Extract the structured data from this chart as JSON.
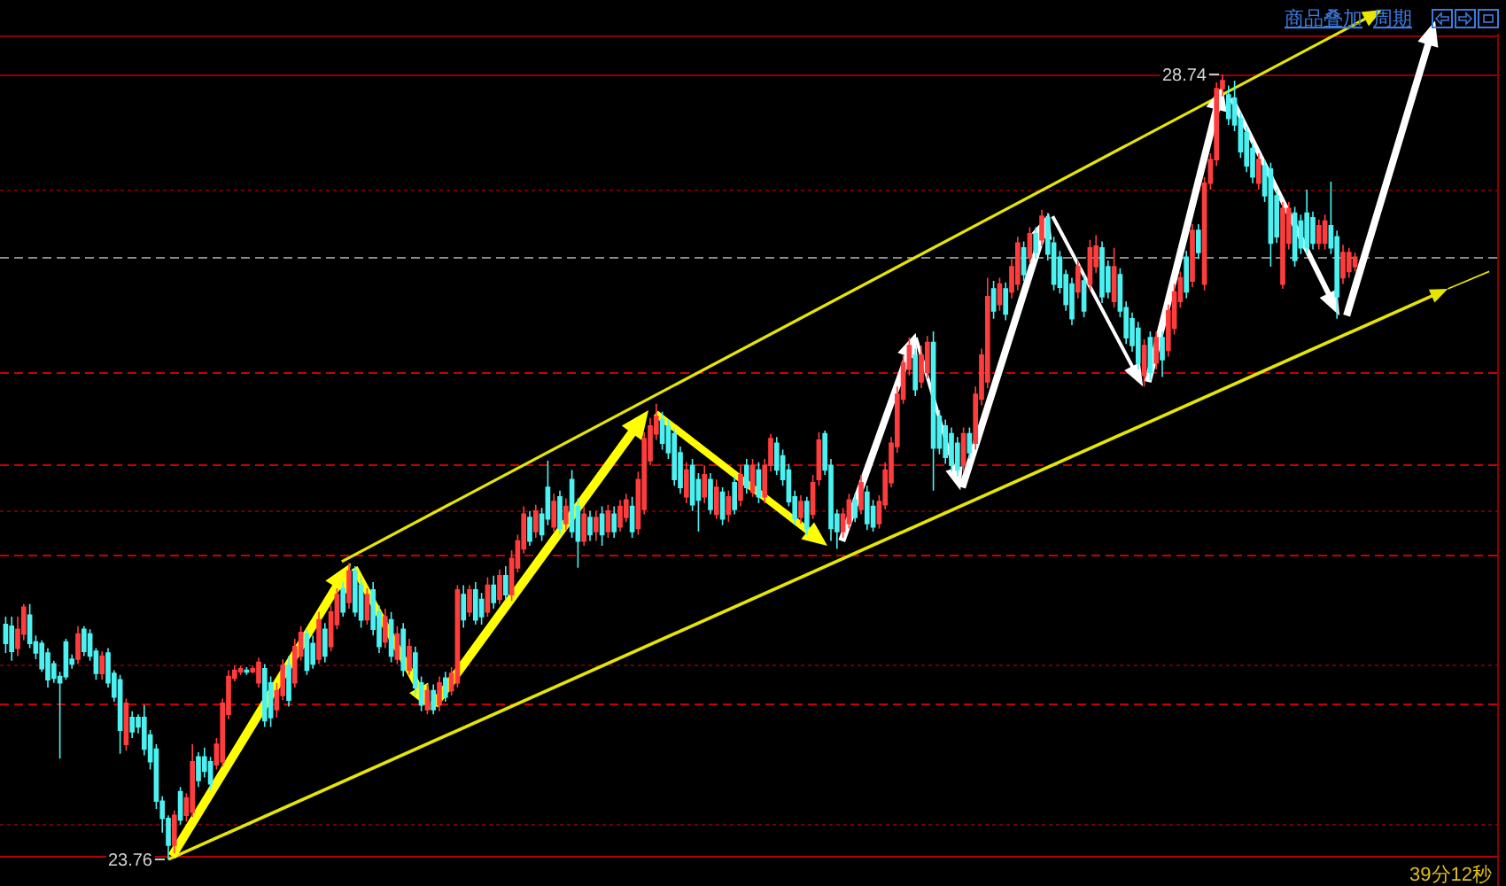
{
  "chart_data": {
    "type": "candlestick",
    "categories": [
      null,
      null,
      null,
      null,
      null,
      null,
      null,
      null,
      null,
      null,
      null,
      null,
      null,
      null,
      null,
      null,
      null,
      null,
      null,
      null,
      null,
      null,
      null,
      null,
      null,
      null,
      null,
      null,
      null,
      null,
      null,
      null,
      null,
      null,
      null,
      null,
      null,
      null,
      null,
      null,
      null,
      null,
      null,
      null,
      null,
      null,
      null,
      null,
      null,
      null,
      null,
      null,
      null,
      null,
      null,
      null,
      null,
      null,
      null,
      null,
      null,
      null,
      null,
      null,
      null,
      null,
      null,
      null,
      null,
      null,
      null,
      null,
      null,
      null,
      null,
      null,
      null,
      null,
      null,
      null,
      null,
      null,
      null,
      null,
      null,
      null,
      null,
      null,
      null,
      null,
      null,
      null,
      null,
      null,
      null,
      null,
      null,
      null,
      null,
      null,
      null,
      null,
      null,
      null,
      null,
      null,
      null,
      null,
      null,
      null,
      null,
      null,
      null,
      null,
      null,
      null,
      null,
      null,
      null,
      null,
      null,
      null,
      null,
      null,
      null,
      null,
      null,
      null,
      null,
      null,
      null,
      null,
      null,
      null,
      null,
      null,
      null,
      null,
      null,
      null,
      null,
      null,
      null,
      null,
      null,
      null,
      null,
      null,
      null,
      null,
      null,
      null,
      null,
      null,
      null,
      null,
      null,
      null,
      null,
      null,
      null,
      null,
      null,
      null,
      null,
      null,
      null,
      null,
      null,
      null,
      null,
      null,
      null,
      null,
      null,
      null,
      null,
      null,
      null,
      null,
      null,
      null,
      null,
      null,
      null,
      null,
      null,
      null,
      null,
      null,
      null,
      null,
      null,
      null,
      null,
      null,
      null,
      null,
      null,
      null,
      null,
      null,
      null,
      null,
      null,
      null,
      null,
      null,
      null,
      null,
      null,
      null,
      null,
      null,
      null,
      null,
      null,
      null,
      null,
      null,
      null,
      null,
      null,
      null,
      null
    ],
    "ohlc": [
      [
        25.25,
        25.3,
        25.07,
        25.13
      ],
      [
        25.24,
        25.3,
        25.02,
        25.08
      ],
      [
        25.1,
        25.3,
        25.05,
        25.22
      ],
      [
        25.19,
        25.38,
        25.15,
        25.36
      ],
      [
        25.31,
        25.38,
        25.1,
        25.13
      ],
      [
        25.14,
        25.18,
        25.03,
        25.07
      ],
      [
        25.13,
        25.15,
        24.95,
        24.97
      ],
      [
        25.07,
        25.1,
        24.85,
        24.9
      ],
      [
        25.0,
        25.02,
        24.88,
        24.91
      ],
      [
        24.92,
        24.95,
        24.4,
        24.88
      ],
      [
        25.14,
        25.16,
        24.9,
        24.92
      ],
      [
        25.03,
        25.06,
        24.97,
        25.0
      ],
      [
        25.03,
        25.24,
        25.0,
        25.19
      ],
      [
        25.22,
        25.24,
        25.05,
        25.08
      ],
      [
        25.19,
        25.22,
        25.02,
        25.05
      ],
      [
        25.08,
        25.1,
        24.9,
        24.94
      ],
      [
        24.94,
        25.08,
        24.9,
        25.05
      ],
      [
        25.07,
        25.1,
        24.85,
        24.88
      ],
      [
        24.94,
        24.96,
        24.76,
        24.79
      ],
      [
        24.9,
        24.93,
        24.43,
        24.58
      ],
      [
        24.49,
        24.78,
        24.45,
        24.75
      ],
      [
        24.66,
        24.7,
        24.53,
        24.57
      ],
      [
        24.66,
        24.68,
        24.56,
        24.6
      ],
      [
        24.66,
        24.74,
        24.42,
        24.46
      ],
      [
        24.55,
        24.58,
        24.33,
        24.38
      ],
      [
        24.46,
        24.49,
        24.08,
        24.13
      ],
      [
        24.13,
        24.16,
        23.93,
        24.02
      ],
      [
        24.02,
        24.04,
        23.76,
        23.85
      ],
      [
        23.85,
        24.07,
        23.8,
        24.04
      ],
      [
        24.19,
        24.22,
        23.98,
        24.01
      ],
      [
        24.04,
        24.18,
        24.0,
        24.15
      ],
      [
        24.06,
        24.49,
        24.03,
        24.38
      ],
      [
        24.41,
        24.44,
        24.22,
        24.26
      ],
      [
        24.41,
        24.47,
        24.28,
        24.32
      ],
      [
        24.38,
        24.41,
        24.2,
        24.24
      ],
      [
        24.36,
        24.53,
        24.33,
        24.49
      ],
      [
        24.38,
        24.78,
        24.35,
        24.75
      ],
      [
        24.68,
        24.96,
        24.65,
        24.92
      ],
      [
        24.91,
        24.99,
        24.89,
        24.96
      ],
      [
        24.95,
        24.99,
        24.93,
        24.97
      ],
      [
        24.96,
        24.98,
        24.93,
        24.95
      ],
      [
        24.95,
        24.99,
        24.94,
        24.97
      ],
      [
        24.88,
        25.04,
        24.85,
        25.01
      ],
      [
        24.97,
        25.0,
        24.6,
        24.64
      ],
      [
        24.88,
        24.92,
        24.6,
        24.66
      ],
      [
        24.71,
        24.88,
        24.66,
        24.83
      ],
      [
        24.8,
        25.03,
        24.77,
        24.99
      ],
      [
        24.99,
        25.05,
        24.73,
        24.77
      ],
      [
        24.88,
        25.16,
        24.85,
        25.11
      ],
      [
        25.05,
        25.24,
        25.02,
        25.2
      ],
      [
        25.19,
        25.22,
        24.93,
        24.96
      ],
      [
        25.13,
        25.18,
        24.97,
        25.0
      ],
      [
        25.03,
        25.33,
        25.0,
        25.28
      ],
      [
        25.22,
        25.26,
        25.01,
        25.05
      ],
      [
        25.11,
        25.37,
        25.08,
        25.33
      ],
      [
        25.25,
        25.48,
        25.22,
        25.44
      ],
      [
        25.48,
        25.52,
        25.3,
        25.33
      ],
      [
        25.39,
        25.64,
        25.35,
        25.59
      ],
      [
        25.59,
        25.62,
        25.3,
        25.33
      ],
      [
        25.5,
        25.55,
        25.23,
        25.28
      ],
      [
        25.28,
        25.48,
        25.25,
        25.44
      ],
      [
        25.47,
        25.52,
        25.18,
        25.22
      ],
      [
        25.33,
        25.37,
        25.07,
        25.11
      ],
      [
        25.14,
        25.35,
        25.1,
        25.3
      ],
      [
        25.28,
        25.33,
        25.01,
        25.05
      ],
      [
        25.03,
        25.24,
        25.0,
        25.19
      ],
      [
        25.22,
        25.26,
        24.92,
        24.96
      ],
      [
        24.96,
        25.16,
        24.93,
        25.11
      ],
      [
        25.07,
        25.11,
        24.8,
        24.85
      ],
      [
        24.88,
        24.92,
        24.7,
        24.74
      ],
      [
        24.71,
        24.87,
        24.68,
        24.83
      ],
      [
        24.83,
        24.87,
        24.68,
        24.71
      ],
      [
        24.74,
        24.92,
        24.7,
        24.88
      ],
      [
        24.91,
        24.95,
        24.76,
        24.79
      ],
      [
        24.83,
        24.98,
        24.8,
        24.94
      ],
      [
        24.88,
        25.5,
        24.85,
        25.47
      ],
      [
        25.44,
        25.5,
        25.23,
        25.28
      ],
      [
        25.33,
        25.5,
        25.3,
        25.47
      ],
      [
        25.47,
        25.52,
        25.25,
        25.28
      ],
      [
        25.41,
        25.45,
        25.25,
        25.3
      ],
      [
        25.33,
        25.55,
        25.3,
        25.5
      ],
      [
        25.5,
        25.56,
        25.35,
        25.39
      ],
      [
        25.41,
        25.6,
        25.38,
        25.56
      ],
      [
        25.56,
        25.62,
        25.4,
        25.44
      ],
      [
        25.44,
        25.72,
        25.4,
        25.67
      ],
      [
        25.61,
        25.82,
        25.58,
        25.78
      ],
      [
        25.73,
        26.0,
        25.7,
        25.95
      ],
      [
        25.93,
        25.97,
        25.75,
        25.78
      ],
      [
        25.84,
        26.01,
        25.8,
        25.97
      ],
      [
        25.95,
        25.99,
        25.78,
        25.82
      ],
      [
        26.12,
        26.29,
        25.88,
        25.92
      ],
      [
        25.87,
        26.08,
        25.84,
        26.03
      ],
      [
        26.06,
        26.1,
        25.82,
        25.86
      ],
      [
        25.89,
        26.05,
        25.85,
        26.0
      ],
      [
        26.17,
        26.23,
        25.8,
        25.84
      ],
      [
        26.0,
        26.05,
        25.61,
        25.78
      ],
      [
        25.78,
        26.0,
        25.75,
        25.95
      ],
      [
        25.93,
        25.97,
        25.78,
        25.82
      ],
      [
        25.84,
        25.97,
        25.78,
        25.93
      ],
      [
        25.95,
        26.0,
        25.75,
        25.82
      ],
      [
        25.84,
        26.01,
        25.8,
        25.97
      ],
      [
        25.95,
        26.0,
        25.8,
        25.84
      ],
      [
        25.87,
        26.04,
        25.84,
        26.0
      ],
      [
        25.93,
        26.08,
        25.9,
        26.04
      ],
      [
        26.0,
        26.06,
        25.8,
        25.84
      ],
      [
        25.86,
        26.22,
        25.82,
        26.17
      ],
      [
        25.98,
        26.47,
        25.95,
        26.43
      ],
      [
        26.29,
        26.56,
        26.26,
        26.51
      ],
      [
        26.46,
        26.65,
        26.42,
        26.57
      ],
      [
        26.55,
        26.6,
        26.36,
        26.4
      ],
      [
        26.51,
        26.55,
        26.3,
        26.34
      ],
      [
        26.46,
        26.49,
        26.13,
        26.17
      ],
      [
        26.34,
        26.38,
        26.08,
        26.12
      ],
      [
        26.06,
        26.28,
        26.02,
        26.23
      ],
      [
        26.26,
        26.3,
        25.97,
        26.01
      ],
      [
        26.17,
        26.21,
        25.84,
        26.04
      ],
      [
        26.06,
        26.26,
        26.02,
        26.2
      ],
      [
        26.17,
        26.21,
        25.95,
        25.98
      ],
      [
        25.95,
        26.17,
        25.92,
        26.12
      ],
      [
        26.09,
        26.12,
        25.88,
        25.92
      ],
      [
        25.95,
        26.1,
        25.9,
        26.06
      ],
      [
        26.15,
        26.19,
        25.95,
        25.98
      ],
      [
        26.04,
        26.26,
        26.0,
        26.2
      ],
      [
        26.26,
        26.3,
        26.08,
        26.12
      ],
      [
        26.09,
        26.3,
        26.06,
        26.26
      ],
      [
        26.23,
        26.28,
        26.02,
        26.06
      ],
      [
        26.06,
        26.3,
        26.02,
        26.26
      ],
      [
        26.26,
        26.46,
        26.22,
        26.43
      ],
      [
        26.4,
        26.44,
        26.2,
        26.23
      ],
      [
        26.32,
        26.36,
        26.13,
        26.17
      ],
      [
        26.23,
        26.27,
        26.0,
        26.03
      ],
      [
        26.06,
        26.1,
        25.88,
        25.92
      ],
      [
        25.93,
        26.07,
        25.89,
        26.03
      ],
      [
        26.03,
        26.06,
        25.82,
        25.86
      ],
      [
        25.95,
        26.2,
        25.92,
        26.15
      ],
      [
        26.17,
        26.47,
        26.13,
        26.42
      ],
      [
        26.46,
        26.48,
        26.2,
        26.23
      ],
      [
        26.26,
        26.3,
        25.78,
        25.86
      ],
      [
        25.95,
        25.98,
        25.73,
        25.84
      ],
      [
        25.84,
        25.99,
        25.8,
        25.95
      ],
      [
        25.89,
        26.08,
        25.86,
        26.04
      ],
      [
        26.04,
        26.08,
        25.9,
        25.93
      ],
      [
        25.98,
        26.2,
        25.95,
        26.15
      ],
      [
        26.09,
        26.13,
        25.85,
        25.89
      ],
      [
        26.0,
        26.04,
        25.84,
        25.87
      ],
      [
        25.89,
        26.07,
        25.86,
        26.03
      ],
      [
        26.01,
        26.28,
        25.98,
        26.23
      ],
      [
        26.15,
        26.44,
        26.12,
        26.4
      ],
      [
        26.38,
        26.76,
        26.34,
        26.71
      ],
      [
        26.68,
        26.96,
        26.65,
        26.91
      ],
      [
        26.87,
        27.07,
        26.83,
        27.02
      ],
      [
        26.96,
        27.0,
        26.7,
        26.74
      ],
      [
        26.79,
        27.02,
        26.75,
        26.96
      ],
      [
        26.85,
        27.08,
        26.81,
        27.04
      ],
      [
        27.04,
        27.11,
        26.1,
        26.37
      ],
      [
        26.57,
        26.61,
        26.33,
        26.37
      ],
      [
        26.51,
        26.55,
        26.27,
        26.31
      ],
      [
        26.46,
        26.5,
        26.22,
        26.26
      ],
      [
        26.4,
        26.44,
        26.19,
        26.23
      ],
      [
        26.26,
        26.5,
        26.22,
        26.46
      ],
      [
        26.46,
        26.5,
        26.3,
        26.34
      ],
      [
        26.4,
        26.76,
        26.36,
        26.71
      ],
      [
        26.68,
        27.0,
        26.64,
        26.96
      ],
      [
        26.79,
        27.45,
        26.75,
        27.33
      ],
      [
        27.38,
        27.43,
        27.19,
        27.24
      ],
      [
        27.28,
        27.45,
        27.24,
        27.41
      ],
      [
        27.38,
        27.42,
        27.18,
        27.22
      ],
      [
        27.36,
        27.57,
        27.32,
        27.52
      ],
      [
        27.41,
        27.71,
        27.37,
        27.67
      ],
      [
        27.64,
        27.68,
        27.43,
        27.47
      ],
      [
        27.58,
        27.77,
        27.54,
        27.73
      ],
      [
        27.73,
        27.77,
        27.57,
        27.61
      ],
      [
        27.69,
        27.88,
        27.65,
        27.84
      ],
      [
        27.83,
        27.86,
        27.56,
        27.6
      ],
      [
        27.67,
        27.71,
        27.37,
        27.41
      ],
      [
        27.58,
        27.62,
        27.35,
        27.39
      ],
      [
        27.47,
        27.5,
        27.24,
        27.28
      ],
      [
        27.41,
        27.45,
        27.15,
        27.19
      ],
      [
        27.36,
        27.56,
        27.32,
        27.52
      ],
      [
        27.43,
        27.47,
        27.2,
        27.24
      ],
      [
        27.41,
        27.69,
        27.37,
        27.64
      ],
      [
        27.52,
        27.72,
        27.48,
        27.65
      ],
      [
        27.64,
        27.68,
        27.29,
        27.33
      ],
      [
        27.52,
        27.56,
        27.32,
        27.36
      ],
      [
        27.3,
        27.64,
        27.26,
        27.52
      ],
      [
        27.47,
        27.51,
        27.2,
        27.24
      ],
      [
        27.26,
        27.3,
        27.03,
        27.07
      ],
      [
        27.19,
        27.23,
        26.98,
        27.02
      ],
      [
        27.13,
        27.17,
        26.87,
        26.91
      ],
      [
        26.83,
        27.06,
        26.76,
        27.02
      ],
      [
        27.07,
        27.11,
        26.8,
        26.85
      ],
      [
        26.91,
        27.11,
        26.87,
        27.07
      ],
      [
        27.07,
        27.11,
        26.82,
        26.93
      ],
      [
        26.99,
        27.28,
        26.95,
        27.24
      ],
      [
        27.13,
        27.41,
        27.09,
        27.36
      ],
      [
        27.3,
        27.49,
        27.26,
        27.45
      ],
      [
        27.58,
        27.62,
        27.32,
        27.36
      ],
      [
        27.43,
        27.79,
        27.39,
        27.75
      ],
      [
        27.75,
        27.79,
        27.57,
        27.61
      ],
      [
        27.41,
        28.09,
        27.37,
        28.05
      ],
      [
        28.05,
        28.24,
        28.01,
        28.2
      ],
      [
        28.2,
        28.69,
        28.16,
        28.65
      ],
      [
        28.65,
        28.74,
        28.6,
        28.7
      ],
      [
        28.61,
        28.67,
        28.42,
        28.46
      ],
      [
        28.59,
        28.7,
        28.38,
        28.42
      ],
      [
        28.46,
        28.5,
        28.21,
        28.25
      ],
      [
        28.37,
        28.41,
        28.12,
        28.16
      ],
      [
        28.27,
        28.31,
        28.05,
        28.09
      ],
      [
        28.05,
        28.24,
        28.01,
        28.2
      ],
      [
        28.16,
        28.2,
        27.93,
        27.97
      ],
      [
        28.14,
        28.18,
        27.52,
        27.67
      ],
      [
        27.97,
        28.01,
        27.67,
        27.71
      ],
      [
        27.41,
        27.93,
        27.38,
        27.89
      ],
      [
        27.67,
        27.93,
        27.63,
        27.89
      ],
      [
        27.86,
        27.9,
        27.52,
        27.56
      ],
      [
        27.81,
        27.85,
        27.6,
        27.64
      ],
      [
        27.86,
        28.01,
        27.6,
        27.64
      ],
      [
        27.83,
        27.87,
        27.63,
        27.67
      ],
      [
        27.67,
        27.82,
        27.63,
        27.78
      ],
      [
        27.67,
        27.85,
        27.63,
        27.81
      ],
      [
        27.78,
        28.06,
        27.6,
        27.64
      ],
      [
        27.71,
        27.75,
        27.19,
        27.33
      ],
      [
        27.45,
        27.66,
        27.41,
        27.61
      ],
      [
        27.49,
        27.64,
        27.45,
        27.61
      ],
      [
        27.52,
        27.61,
        27.49,
        27.58
      ]
    ],
    "colors": [
      "#4cf2f2",
      "#4cf2f2",
      "#ff3d3d",
      "#ff3d3d",
      "#4cf2f2",
      "#4cf2f2",
      "#4cf2f2",
      "#4cf2f2",
      "#4cf2f2",
      "#4cf2f2",
      "#4cf2f2",
      "#4cf2f2",
      "#ff3d3d",
      "#4cf2f2",
      "#4cf2f2",
      "#4cf2f2",
      "#ff3d3d",
      "#4cf2f2",
      "#4cf2f2",
      "#4cf2f2",
      "#ff3d3d",
      "#4cf2f2",
      "#4cf2f2",
      "#4cf2f2",
      "#4cf2f2",
      "#4cf2f2",
      "#4cf2f2",
      "#4cf2f2",
      "#ff3d3d",
      "#4cf2f2",
      "#ff3d3d",
      "#ff3d3d",
      "#4cf2f2",
      "#4cf2f2",
      "#4cf2f2",
      "#ff3d3d",
      "#ff3d3d",
      "#ff3d3d",
      "#ff3d3d",
      "#ff3d3d",
      "#4cf2f2",
      "#ff3d3d",
      "#ff3d3d",
      "#4cf2f2",
      "#4cf2f2",
      "#ff3d3d",
      "#ff3d3d",
      "#4cf2f2",
      "#ff3d3d",
      "#ff3d3d",
      "#4cf2f2",
      "#4cf2f2",
      "#ff3d3d",
      "#4cf2f2",
      "#ff3d3d",
      "#ff3d3d",
      "#4cf2f2",
      "#ff3d3d",
      "#4cf2f2",
      "#4cf2f2",
      "#ff3d3d",
      "#4cf2f2",
      "#4cf2f2",
      "#ff3d3d",
      "#4cf2f2",
      "#ff3d3d",
      "#4cf2f2",
      "#ff3d3d",
      "#4cf2f2",
      "#4cf2f2",
      "#ff3d3d",
      "#4cf2f2",
      "#ff3d3d",
      "#4cf2f2",
      "#ff3d3d",
      "#ff3d3d",
      "#4cf2f2",
      "#ff3d3d",
      "#4cf2f2",
      "#4cf2f2",
      "#ff3d3d",
      "#4cf2f2",
      "#ff3d3d",
      "#4cf2f2",
      "#ff3d3d",
      "#ff3d3d",
      "#ff3d3d",
      "#4cf2f2",
      "#ff3d3d",
      "#4cf2f2",
      "#4cf2f2",
      "#ff3d3d",
      "#4cf2f2",
      "#ff3d3d",
      "#4cf2f2",
      "#4cf2f2",
      "#ff3d3d",
      "#4cf2f2",
      "#ff3d3d",
      "#4cf2f2",
      "#ff3d3d",
      "#4cf2f2",
      "#ff3d3d",
      "#ff3d3d",
      "#4cf2f2",
      "#ff3d3d",
      "#ff3d3d",
      "#ff3d3d",
      "#ff3d3d",
      "#4cf2f2",
      "#4cf2f2",
      "#4cf2f2",
      "#4cf2f2",
      "#ff3d3d",
      "#4cf2f2",
      "#4cf2f2",
      "#ff3d3d",
      "#4cf2f2",
      "#ff3d3d",
      "#4cf2f2",
      "#ff3d3d",
      "#4cf2f2",
      "#ff3d3d",
      "#4cf2f2",
      "#ff3d3d",
      "#4cf2f2",
      "#ff3d3d",
      "#ff3d3d",
      "#4cf2f2",
      "#4cf2f2",
      "#4cf2f2",
      "#4cf2f2",
      "#ff3d3d",
      "#4cf2f2",
      "#ff3d3d",
      "#ff3d3d",
      "#4cf2f2",
      "#4cf2f2",
      "#4cf2f2",
      "#ff3d3d",
      "#ff3d3d",
      "#4cf2f2",
      "#ff3d3d",
      "#4cf2f2",
      "#4cf2f2",
      "#ff3d3d",
      "#ff3d3d",
      "#ff3d3d",
      "#ff3d3d",
      "#ff3d3d",
      "#ff3d3d",
      "#4cf2f2",
      "#ff3d3d",
      "#ff3d3d",
      "#4cf2f2",
      "#4cf2f2",
      "#4cf2f2",
      "#4cf2f2",
      "#4cf2f2",
      "#ff3d3d",
      "#4cf2f2",
      "#ff3d3d",
      "#ff3d3d",
      "#ff3d3d",
      "#4cf2f2",
      "#ff3d3d",
      "#4cf2f2",
      "#ff3d3d",
      "#ff3d3d",
      "#4cf2f2",
      "#ff3d3d",
      "#4cf2f2",
      "#ff3d3d",
      "#4cf2f2",
      "#4cf2f2",
      "#4cf2f2",
      "#4cf2f2",
      "#4cf2f2",
      "#ff3d3d",
      "#4cf2f2",
      "#ff3d3d",
      "#ff3d3d",
      "#4cf2f2",
      "#4cf2f2",
      "#ff3d3d",
      "#4cf2f2",
      "#4cf2f2",
      "#4cf2f2",
      "#4cf2f2",
      "#ff3d3d",
      "#4cf2f2",
      "#ff3d3d",
      "#4cf2f2",
      "#ff3d3d",
      "#ff3d3d",
      "#ff3d3d",
      "#4cf2f2",
      "#ff3d3d",
      "#4cf2f2",
      "#ff3d3d",
      "#ff3d3d",
      "#ff3d3d",
      "#ff3d3d",
      "#4cf2f2",
      "#4cf2f2",
      "#4cf2f2",
      "#4cf2f2",
      "#4cf2f2",
      "#ff3d3d",
      "#4cf2f2",
      "#4cf2f2",
      "#4cf2f2",
      "#ff3d3d",
      "#ff3d3d",
      "#4cf2f2",
      "#4cf2f2",
      "#4cf2f2",
      "#4cf2f2",
      "#ff3d3d",
      "#ff3d3d",
      "#4cf2f2",
      "#4cf2f2",
      "#ff3d3d",
      "#ff3d3d",
      "#ff3d3d"
    ],
    "ref_lines": [
      {
        "axis": "y",
        "value": 28.99,
        "color": "#8c0000",
        "line_style": "solid"
      },
      {
        "axis": "y",
        "value": 28.74,
        "color": "#8c0000",
        "line_style": "solid"
      },
      {
        "axis": "y",
        "value": 28.01,
        "color": "#6e0000",
        "line_style": "dotted"
      },
      {
        "axis": "y",
        "value": 27.58,
        "color": "#8a8a8a",
        "line_style": "dashed"
      },
      {
        "axis": "y",
        "value": 26.85,
        "color": "#c80000",
        "line_style": "dashed"
      },
      {
        "axis": "y",
        "value": 26.27,
        "color": "#c80000",
        "line_style": "dashed"
      },
      {
        "axis": "y",
        "value": 25.98,
        "color": "#6e0000",
        "line_style": "dotted"
      },
      {
        "axis": "y",
        "value": 25.69,
        "color": "#c80000",
        "line_style": "dashed"
      },
      {
        "axis": "y",
        "value": 25.0,
        "color": "#6e0000",
        "line_style": "dotted"
      },
      {
        "axis": "y",
        "value": 24.75,
        "color": "#c80000",
        "line_style": "dashed"
      },
      {
        "axis": "y",
        "value": 23.99,
        "color": "#6e0000",
        "line_style": "dotted"
      },
      {
        "axis": "y",
        "value": 23.78,
        "color": "#b40000",
        "line_style": "solid"
      }
    ],
    "annotations": [
      {
        "text": "28.74",
        "y": 28.74
      },
      {
        "text": "23.76",
        "y": 23.76
      },
      "商品叠加",
      "周期",
      "39分12秒"
    ]
  }
}
